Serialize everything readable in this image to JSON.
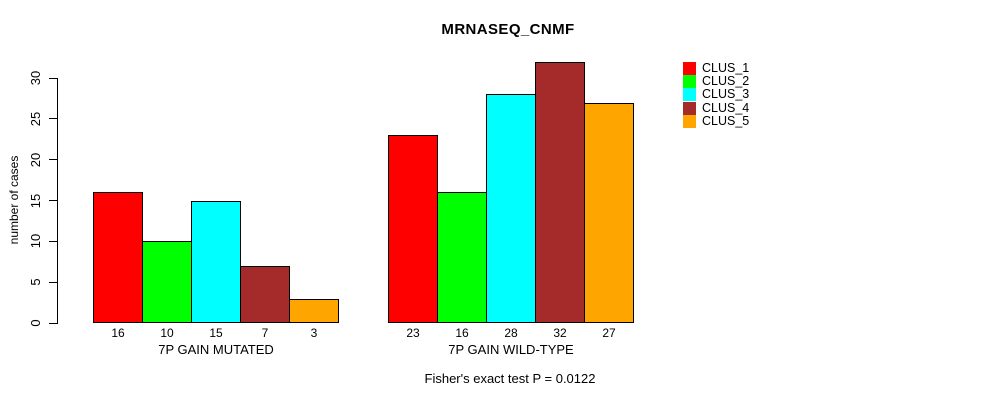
{
  "title": "MRNASEQ_CNMF",
  "y_axis": {
    "label": "number of cases",
    "ticks": [
      0,
      5,
      10,
      15,
      20,
      25,
      30
    ]
  },
  "footer": "Fisher's exact test P = 0.0122",
  "legend": {
    "items": [
      {
        "label": "CLUS_1",
        "color": "#FF0000"
      },
      {
        "label": "CLUS_2",
        "color": "#00FF00"
      },
      {
        "label": "CLUS_3",
        "color": "#00FFFF"
      },
      {
        "label": "CLUS_4",
        "color": "#A52A2A"
      },
      {
        "label": "CLUS_5",
        "color": "#FFA500"
      }
    ]
  },
  "chart_data": {
    "type": "bar",
    "title": "MRNASEQ_CNMF",
    "ylabel": "number of cases",
    "ylim": [
      0,
      32
    ],
    "yticks": [
      0,
      5,
      10,
      15,
      20,
      25,
      30
    ],
    "grid": false,
    "legend_position": "right",
    "series_names": [
      "CLUS_1",
      "CLUS_2",
      "CLUS_3",
      "CLUS_4",
      "CLUS_5"
    ],
    "series_colors": [
      "#FF0000",
      "#00FF00",
      "#00FFFF",
      "#A52A2A",
      "#FFA500"
    ],
    "groups": [
      {
        "label": "7P GAIN MUTATED",
        "values": [
          16,
          10,
          15,
          7,
          3
        ]
      },
      {
        "label": "7P GAIN WILD-TYPE",
        "values": [
          23,
          16,
          28,
          32,
          27
        ]
      }
    ],
    "bar_value_labels_shown": true,
    "annotation": "Fisher's exact test P = 0.0122"
  }
}
